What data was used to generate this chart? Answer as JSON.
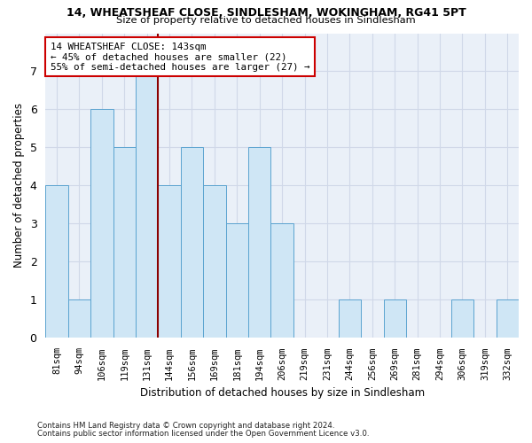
{
  "title": "14, WHEATSHEAF CLOSE, SINDLESHAM, WOKINGHAM, RG41 5PT",
  "subtitle": "Size of property relative to detached houses in Sindlesham",
  "xlabel": "Distribution of detached houses by size in Sindlesham",
  "ylabel": "Number of detached properties",
  "bar_color": "#cfe6f5",
  "bar_edge_color": "#5ba3d0",
  "grid_color": "#d0d8e8",
  "bg_color": "#eaf0f8",
  "marker_line_color": "#8b0000",
  "annotation_box_color": "#cc0000",
  "categories": [
    "81sqm",
    "94sqm",
    "106sqm",
    "119sqm",
    "131sqm",
    "144sqm",
    "156sqm",
    "169sqm",
    "181sqm",
    "194sqm",
    "206sqm",
    "219sqm",
    "231sqm",
    "244sqm",
    "256sqm",
    "269sqm",
    "281sqm",
    "294sqm",
    "306sqm",
    "319sqm",
    "332sqm"
  ],
  "values": [
    4,
    1,
    6,
    5,
    7,
    4,
    5,
    4,
    3,
    5,
    3,
    0,
    0,
    1,
    0,
    1,
    0,
    0,
    1,
    0,
    1
  ],
  "marker_index": 5,
  "ylim": [
    0,
    8
  ],
  "yticks": [
    0,
    1,
    2,
    3,
    4,
    5,
    6,
    7,
    8
  ],
  "annotation_lines": [
    "14 WHEATSHEAF CLOSE: 143sqm",
    "← 45% of detached houses are smaller (22)",
    "55% of semi-detached houses are larger (27) →"
  ],
  "footnote1": "Contains HM Land Registry data © Crown copyright and database right 2024.",
  "footnote2": "Contains public sector information licensed under the Open Government Licence v3.0."
}
